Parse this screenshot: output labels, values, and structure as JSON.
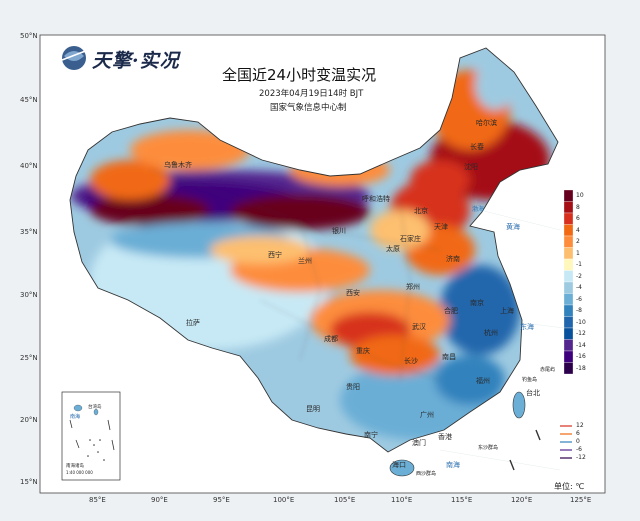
{
  "brand": {
    "name": "天擎·实况",
    "logo_icon": "globe-logo-icon"
  },
  "header": {
    "title": "全国近24小时变温实况",
    "datetime": "2023年04月19日14时  BJT",
    "producer": "国家气象信息中心制"
  },
  "axes": {
    "latitude_labels": [
      "50°N",
      "45°N",
      "40°N",
      "35°N",
      "30°N",
      "25°N",
      "20°N",
      "15°N"
    ],
    "longitude_labels": [
      "85°E",
      "90°E",
      "95°E",
      "100°E",
      "105°E",
      "110°E",
      "115°E",
      "120°E",
      "125°E"
    ]
  },
  "legend": {
    "unit": "单位: ℃",
    "bins": [
      {
        "label": "10",
        "color": "#67001f"
      },
      {
        "label": "8",
        "color": "#a50f15"
      },
      {
        "label": "6",
        "color": "#d7301f"
      },
      {
        "label": "4",
        "color": "#f16913"
      },
      {
        "label": "2",
        "color": "#fd8d3c"
      },
      {
        "label": "1",
        "color": "#fdbf6f"
      },
      {
        "label": "-1",
        "color": "#fff7bc"
      },
      {
        "label": "-2",
        "color": "#c7e9f5"
      },
      {
        "label": "-4",
        "color": "#9ecae1"
      },
      {
        "label": "-6",
        "color": "#6baed6"
      },
      {
        "label": "-8",
        "color": "#3182bd"
      },
      {
        "label": "-10",
        "color": "#2166ac"
      },
      {
        "label": "-12",
        "color": "#08519c"
      },
      {
        "label": "-14",
        "color": "#54278f"
      },
      {
        "label": "-16",
        "color": "#3f007d"
      },
      {
        "label": "-18",
        "color": "#2d004b"
      }
    ],
    "contour_labels": [
      {
        "label": "12",
        "color": "#d7301f"
      },
      {
        "label": "6",
        "color": "#f16913"
      },
      {
        "label": "0",
        "color": "#3182bd"
      },
      {
        "label": "-6",
        "color": "#54278f"
      },
      {
        "label": "-12",
        "color": "#2d004b"
      }
    ]
  },
  "inset": {
    "labels": [
      "台湾岛",
      "南海",
      "南海诸岛"
    ],
    "scale": "1:40 000 000"
  },
  "cities": [
    {
      "name": "哈尔滨"
    },
    {
      "name": "长春"
    },
    {
      "name": "沈阳"
    },
    {
      "name": "呼和浩特"
    },
    {
      "name": "北京"
    },
    {
      "name": "天津"
    },
    {
      "name": "石家庄"
    },
    {
      "name": "太原"
    },
    {
      "name": "济南"
    },
    {
      "name": "银川"
    },
    {
      "name": "兰州"
    },
    {
      "name": "西宁"
    },
    {
      "name": "西安"
    },
    {
      "name": "郑州"
    },
    {
      "name": "合肥"
    },
    {
      "name": "南京"
    },
    {
      "name": "上海"
    },
    {
      "name": "杭州"
    },
    {
      "name": "武汉"
    },
    {
      "name": "成都"
    },
    {
      "name": "重庆"
    },
    {
      "name": "长沙"
    },
    {
      "name": "南昌"
    },
    {
      "name": "福州"
    },
    {
      "name": "台北"
    },
    {
      "name": "贵阳"
    },
    {
      "name": "昆明"
    },
    {
      "name": "南宁"
    },
    {
      "name": "广州"
    },
    {
      "name": "香港"
    },
    {
      "name": "澳门"
    },
    {
      "name": "海口"
    },
    {
      "name": "拉萨"
    },
    {
      "name": "乌鲁木齐"
    }
  ],
  "water_labels": [
    "黄海",
    "东海",
    "南海",
    "渤海"
  ],
  "islands": [
    "钓鱼岛",
    "赤尾屿",
    "东沙群岛",
    "西沙群岛"
  ]
}
